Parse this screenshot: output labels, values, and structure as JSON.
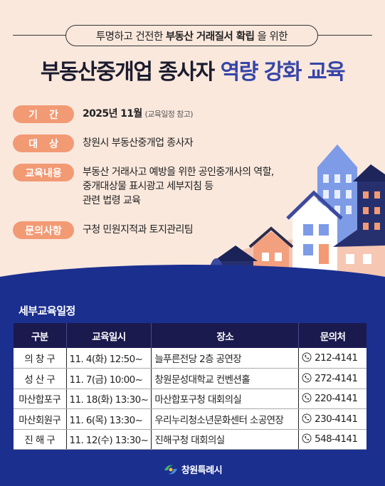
{
  "subtitle": {
    "pre": "투명하고 건전한",
    "bold": "부동산 거래질서 확립",
    "post": "을 위한"
  },
  "title": {
    "main": "부동산중개업 종사자",
    "highlight": "역량 강화 교육"
  },
  "info": [
    {
      "tag": "기간",
      "value_bold": "2025년 11월",
      "value_note": "(교육일정 참고)"
    },
    {
      "tag": "대상",
      "value": "창원시 부동산중개업 종사자"
    },
    {
      "tag": "교육내용",
      "lines": [
        "부동산 거래사고 예방을 위한 공인중개사의 역할,",
        "중개대상물 표시광고 세부지침 등",
        "관련 법령 교육"
      ]
    },
    {
      "tag": "문의사항",
      "value": "구청 민원지적과 토지관리팀"
    }
  ],
  "schedule": {
    "title": "세부교육일정",
    "headers": [
      "구분",
      "교육일시",
      "장소",
      "문의처"
    ],
    "rows": [
      {
        "gu": "의 창 구",
        "date": "11. 4(화) 12:50~",
        "place": "늘푸른전당 2층 공연장",
        "tel": "212-4141"
      },
      {
        "gu": "성 산 구",
        "date": "11. 7(금) 10:00~",
        "place": "창원문성대학교 컨벤션홀",
        "tel": "272-4141"
      },
      {
        "gu": "마산합포구",
        "date": "11. 18(화) 13:30~",
        "place": "마산합포구청 대회의실",
        "tel": "220-4141"
      },
      {
        "gu": "마산회원구",
        "date": "11. 6(목) 13:30~",
        "place": "우리누리청소년문화센터 소공연장",
        "tel": "230-4141"
      },
      {
        "gu": "진 해 구",
        "date": "11. 12(수) 13:30~",
        "place": "진해구청 대회의실",
        "tel": "548-4141"
      }
    ]
  },
  "logo": {
    "text": "창원특례시",
    "icon": "changwon-logo-icon"
  },
  "colors": {
    "tag": "#f29a74",
    "navy": "#1b2f8f",
    "header": "#1b1a4e",
    "highlight": "#3645a8"
  }
}
